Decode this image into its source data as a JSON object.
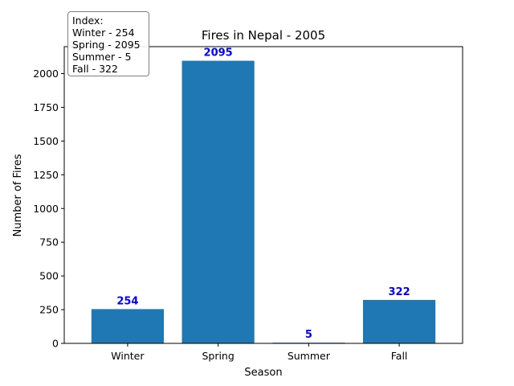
{
  "chart_data": {
    "type": "bar",
    "title": "Fires in Nepal - 2005",
    "xlabel": "Season",
    "ylabel": "Number of Fires",
    "categories": [
      "Winter",
      "Spring",
      "Summer",
      "Fall"
    ],
    "values": [
      254,
      2095,
      5,
      322
    ],
    "data_labels": [
      "254",
      "2095",
      "5",
      "322"
    ],
    "ylim": [
      0,
      2199.75
    ],
    "yticks": [
      0,
      250,
      500,
      750,
      1000,
      1250,
      1500,
      1750,
      2000
    ],
    "bar_color": "#1f77b4",
    "label_color": "#0000ff",
    "grid": false,
    "index_box": {
      "placement": "top-left",
      "lines": [
        "Index:",
        "Winter - 254",
        "Spring - 2095",
        "Summer - 5",
        "Fall - 322"
      ]
    }
  }
}
